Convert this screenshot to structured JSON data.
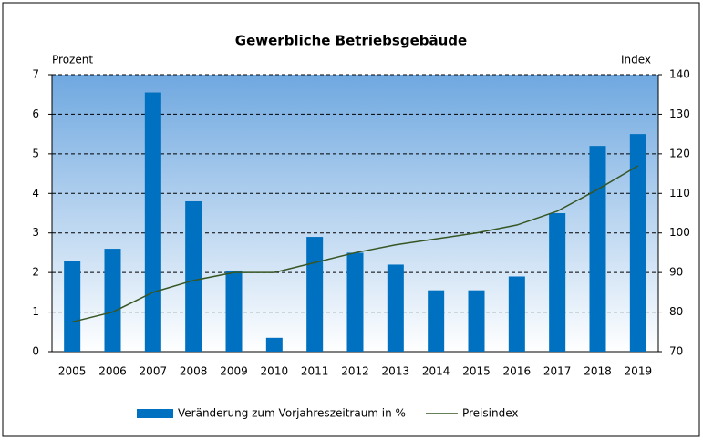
{
  "chart_data": {
    "type": "bar",
    "title": "Gewerbliche Betriebsgebäude",
    "y_label": "Prozent",
    "y2_label": "Index",
    "categories": [
      "2005",
      "2006",
      "2007",
      "2008",
      "2009",
      "2010",
      "2011",
      "2012",
      "2013",
      "2014",
      "2015",
      "2016",
      "2017",
      "2018",
      "2019"
    ],
    "series": [
      {
        "name": "Veränderung zum Vorjahreszeitraum in %",
        "type": "bar",
        "color": "#0070c0",
        "values": [
          2.3,
          2.6,
          6.55,
          3.8,
          2.05,
          0.35,
          2.9,
          2.5,
          2.2,
          1.55,
          1.55,
          1.9,
          3.5,
          5.2,
          5.5
        ]
      },
      {
        "name": "Preisindex",
        "type": "line",
        "axis": "y2",
        "color": "#375623",
        "values": [
          77.5,
          80,
          85,
          88,
          90,
          90,
          92.5,
          95,
          97,
          98.5,
          100,
          102,
          105.5,
          111,
          117
        ]
      }
    ],
    "ylim": [
      0,
      7
    ],
    "yticks": [
      0,
      1,
      2,
      3,
      4,
      5,
      6,
      7
    ],
    "y2lim": [
      70,
      140
    ],
    "y2ticks": [
      70,
      80,
      90,
      100,
      110,
      120,
      130,
      140
    ],
    "grid": true,
    "legend": "bottom"
  }
}
